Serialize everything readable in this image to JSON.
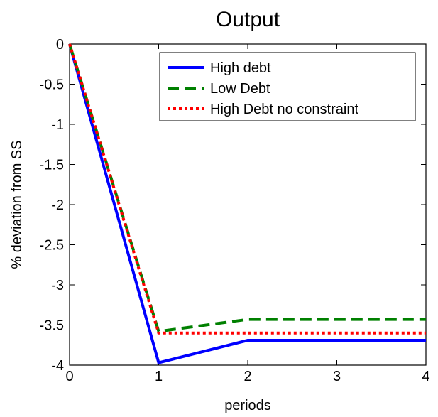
{
  "chart_data": {
    "type": "line",
    "title": "Output",
    "xlabel": "periods",
    "ylabel": "% deviation from SS",
    "xlim": [
      0,
      4
    ],
    "ylim": [
      -4,
      0
    ],
    "xticks": [
      0,
      1,
      2,
      3,
      4
    ],
    "xtick_labels": [
      "0",
      "1",
      "2",
      "3",
      "4"
    ],
    "yticks": [
      0,
      -0.5,
      -1,
      -1.5,
      -2,
      -2.5,
      -3,
      -3.5,
      -4
    ],
    "ytick_labels": [
      "0",
      "-0.5",
      "-1",
      "-1.5",
      "-2",
      "-2.5",
      "-3",
      "-3.5",
      "-4"
    ],
    "grid": false,
    "legend_position": "top-right",
    "x": [
      0,
      1,
      2,
      3,
      4
    ],
    "series": [
      {
        "name": "High debt",
        "values": [
          0,
          -3.97,
          -3.69,
          -3.69,
          -3.69
        ],
        "color": "#0000ff",
        "style": "solid"
      },
      {
        "name": "Low Debt",
        "values": [
          0,
          -3.58,
          -3.43,
          -3.43,
          -3.43
        ],
        "color": "#008000",
        "style": "dashed"
      },
      {
        "name": "High Debt no constraint",
        "values": [
          0,
          -3.6,
          -3.6,
          -3.6,
          -3.6
        ],
        "color": "#ff0000",
        "style": "dotted"
      }
    ]
  }
}
